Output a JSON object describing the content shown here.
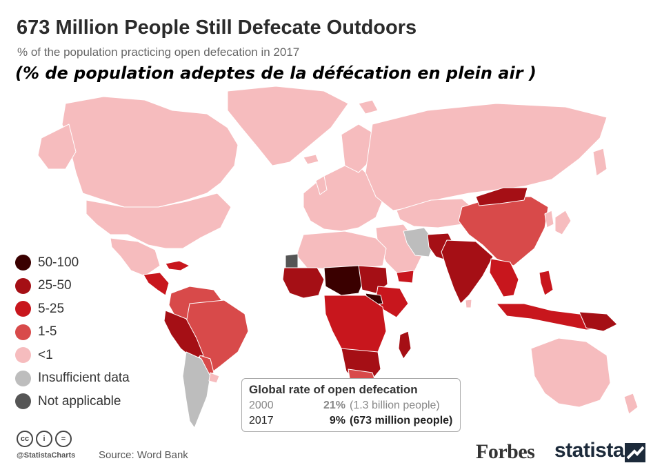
{
  "header": {
    "title": "673 Million People Still Defecate Outdoors",
    "subtitle": "% of the population practicing open defecation in 2017",
    "subtitle_fr": "(% de population adeptes de la défécation en plein air )"
  },
  "legend": {
    "items": [
      {
        "label": "50-100",
        "color": "#3a0000"
      },
      {
        "label": "25-50",
        "color": "#a50f15"
      },
      {
        "label": "5-25",
        "color": "#c8161d"
      },
      {
        "label": "1-5",
        "color": "#d84a4a"
      },
      {
        "label": "<1",
        "color": "#f6bcbe"
      },
      {
        "label": "Insufficient data",
        "color": "#bdbdbd"
      },
      {
        "label": "Not applicable",
        "color": "#555555"
      }
    ]
  },
  "info_box": {
    "title": "Global rate of open defecation",
    "rows": [
      {
        "year": "2000",
        "value": "21%",
        "detail": "(1.3 billion people)"
      },
      {
        "year": "2017",
        "value": "9%",
        "detail": "(673 million people)"
      }
    ]
  },
  "footer": {
    "license_icons": [
      "creative-commons-icon",
      "attribution-icon",
      "no-derivatives-icon"
    ],
    "license_glyphs": [
      "cc",
      "i",
      "="
    ],
    "handle": "@StatistaCharts",
    "source": "Source: Word Bank",
    "forbes": "Forbes",
    "statista": "statista"
  },
  "colors": {
    "lt1": "#f6bcbe",
    "c1_5": "#d84a4a",
    "c5_25": "#c8161d",
    "c25_50": "#a50f15",
    "c50_100": "#3a0000",
    "insufficient": "#bdbdbd",
    "not_applicable": "#555555"
  }
}
